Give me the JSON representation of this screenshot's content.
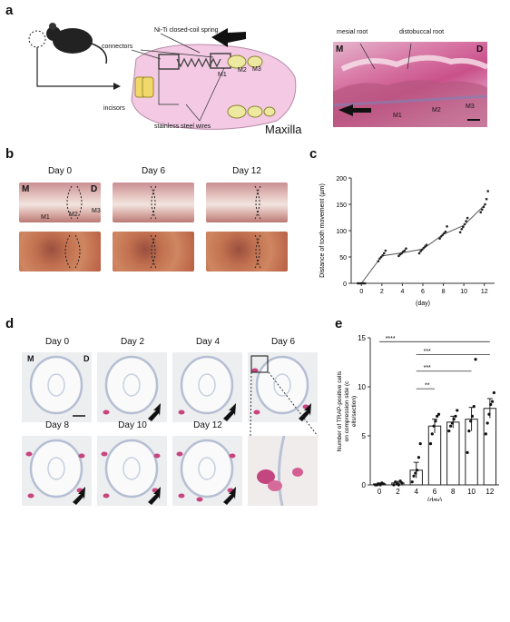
{
  "panels": {
    "a": "a",
    "b": "b",
    "c": "c",
    "d": "d",
    "e": "e"
  },
  "panel_a": {
    "spring": "Ni-Ti closed-coil spring",
    "connectors": "connectors",
    "incisors": "incisors",
    "wires": "stainless steel wires",
    "maxilla": "Maxilla",
    "m1": "M1",
    "m2": "M2",
    "m3": "M3",
    "mesial_root": "mesial root",
    "distobuccal_root": "distobuccal root",
    "hist_M": "M",
    "hist_D": "D",
    "hist_m1": "M1",
    "hist_m2": "M2",
    "hist_m3": "M3"
  },
  "panel_b": {
    "days": [
      "Day 0",
      "Day 6",
      "Day 12"
    ],
    "M": "M",
    "D": "D",
    "m1": "M1",
    "m2": "M2",
    "m3": "M3"
  },
  "panel_d": {
    "days_row1": [
      "Day 0",
      "Day 2",
      "Day 4",
      "Day 6"
    ],
    "days_row2": [
      "Day 8",
      "Day 10",
      "Day 12"
    ],
    "M": "M",
    "D": "D"
  },
  "chart_data": [
    {
      "type": "scatter",
      "panel": "c",
      "xlabel": "(day)",
      "ylabel": "Distance of tooth movement (µm)",
      "xlim": [
        -1,
        13
      ],
      "ylim": [
        0,
        200
      ],
      "xticks": [
        0,
        2,
        4,
        6,
        8,
        10,
        12
      ],
      "yticks": [
        0,
        50,
        100,
        150,
        200
      ],
      "mean_line": {
        "x": [
          0,
          2,
          4,
          6,
          8,
          10,
          12
        ],
        "y": [
          0,
          52,
          58,
          65,
          93,
          110,
          148
        ]
      },
      "points": [
        {
          "x": 0,
          "y": [
            0,
            0,
            0,
            0,
            0,
            0
          ]
        },
        {
          "x": 2,
          "y": [
            42,
            47,
            50,
            53,
            57,
            62
          ]
        },
        {
          "x": 4,
          "y": [
            52,
            55,
            57,
            60,
            62,
            66
          ]
        },
        {
          "x": 6,
          "y": [
            57,
            61,
            64,
            67,
            70,
            73
          ]
        },
        {
          "x": 8,
          "y": [
            85,
            89,
            92,
            95,
            98,
            108
          ]
        },
        {
          "x": 10,
          "y": [
            97,
            103,
            107,
            112,
            118,
            124
          ]
        },
        {
          "x": 12,
          "y": [
            135,
            140,
            145,
            150,
            160,
            175
          ]
        }
      ]
    },
    {
      "type": "bar",
      "panel": "e",
      "categories": [
        "0",
        "2",
        "4",
        "6",
        "8",
        "10",
        "12"
      ],
      "values": [
        0.1,
        0.2,
        1.5,
        6.0,
        6.4,
        6.7,
        7.8
      ],
      "errors": [
        0.1,
        0.15,
        0.8,
        0.7,
        0.6,
        1.2,
        1.0
      ],
      "points": [
        [
          0,
          0,
          0.1,
          0,
          0.2,
          0.1
        ],
        [
          0,
          0.3,
          0.1,
          0,
          0.4,
          0.2
        ],
        [
          0.3,
          0.9,
          1.2,
          1.5,
          2.8,
          4.2
        ],
        [
          4.2,
          5.2,
          6.0,
          6.5,
          7.0,
          7.2
        ],
        [
          5.5,
          6.0,
          6.3,
          6.7,
          7.0,
          7.6
        ],
        [
          3.3,
          5.5,
          6.5,
          7.0,
          8.0,
          12.8
        ],
        [
          5.2,
          6.3,
          7.2,
          8.2,
          8.5,
          9.4
        ]
      ],
      "xlabel": "(day)",
      "ylabel": "Number of TRAP-positive cells on compression side (cells/section)",
      "ylim": [
        0,
        15
      ],
      "yticks": [
        0,
        5,
        10,
        15
      ],
      "significance": [
        {
          "label": "****",
          "from": "0",
          "to": "12"
        },
        {
          "label": "***",
          "from": "4",
          "to": "12"
        },
        {
          "label": "***",
          "from": "4",
          "to": "10"
        },
        {
          "label": "**",
          "from": "4",
          "to": "6"
        }
      ]
    }
  ]
}
